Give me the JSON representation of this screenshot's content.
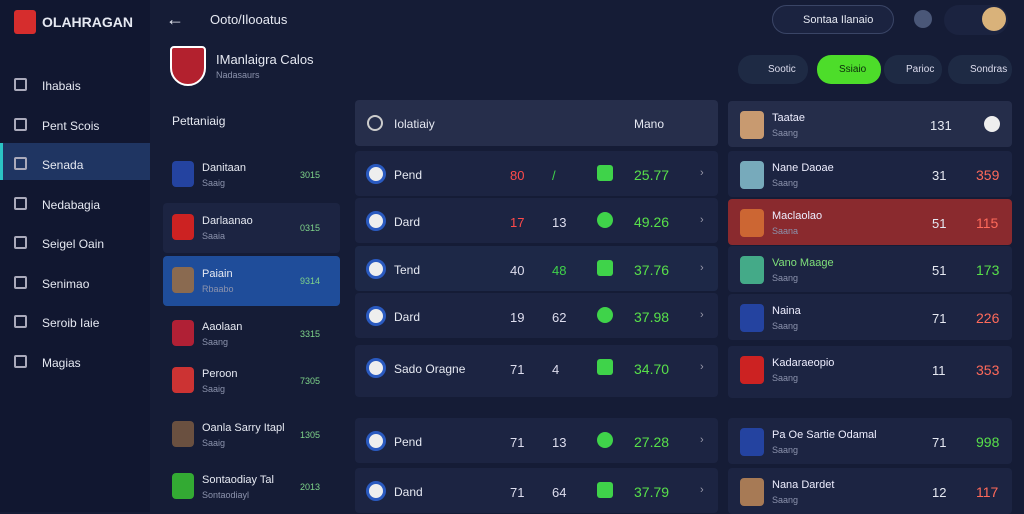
{
  "sidebar": {
    "brand": "OLAHRAGAN",
    "nav": [
      "Ihabais",
      "Pent Scois",
      "Senada",
      "Nedabagia",
      "Seigel Oain",
      "Senimao",
      "Seroib Iaie",
      "Magias"
    ]
  },
  "topbar": {
    "title": "Ooto/Ilooatus",
    "button": "Sontaa Ilanaio"
  },
  "team": {
    "name": "IManlaigra Calos",
    "subtitle": "Nadasaurs"
  },
  "tabs": [
    "Sootic",
    "Ssiaio",
    "Parioc",
    "Sondras"
  ],
  "players": {
    "title": "Pettaniaig",
    "rows": [
      {
        "name": "Danitaan",
        "sub": "Saaig",
        "value": "3015"
      },
      {
        "name": "Darlaanao",
        "sub": "Saaia",
        "value": "0315"
      },
      {
        "name": "Paiain",
        "sub": "Rbaabo",
        "value": "9314"
      },
      {
        "name": "Aaolaan",
        "sub": "Saang",
        "value": "3315"
      },
      {
        "name": "Peroon",
        "sub": "Saaig",
        "value": "7305"
      },
      {
        "name": "Oanla Sarry Itapl",
        "sub": "Saaig",
        "value": "1305"
      },
      {
        "name": "Sontaodiay Tal",
        "sub": "Sontaodiayl",
        "value": "2013"
      }
    ]
  },
  "matches": {
    "headers": [
      "Iolatiaiy",
      "Mano"
    ],
    "rows": [
      {
        "name": "Pend",
        "a": "80",
        "b": "/",
        "value": "25.77"
      },
      {
        "name": "Dard",
        "a": "17",
        "b": "13",
        "value": "49.26"
      },
      {
        "name": "Tend",
        "a": "40",
        "b": "48",
        "value": "37.76"
      },
      {
        "name": "Dard",
        "a": "19",
        "b": "62",
        "value": "37.98"
      },
      {
        "name": "Sado Oragne",
        "a": "71",
        "b": "4",
        "value": "34.70"
      },
      {
        "name": "Pend",
        "a": "71",
        "b": "13",
        "value": "27.28"
      },
      {
        "name": "Dand",
        "a": "71",
        "b": "64",
        "value": "37.79"
      }
    ]
  },
  "standings": {
    "rows": [
      {
        "name": "Taatae",
        "sub": "Saang",
        "rank": "131",
        "score": ""
      },
      {
        "name": "Nane Daoae",
        "sub": "Saang",
        "rank": "31",
        "score": "359"
      },
      {
        "name": "Maclaolao",
        "sub": "Saana",
        "rank": "51",
        "score": "115"
      },
      {
        "name": "Vano Maage",
        "sub": "Saang",
        "rank": "51",
        "score": "173"
      },
      {
        "name": "Naina",
        "sub": "Saang",
        "rank": "71",
        "score": "226"
      },
      {
        "name": "Kadaraeopio",
        "sub": "Saang",
        "rank": "11",
        "score": "353"
      },
      {
        "name": "Pa Oe Sartie Odamal",
        "sub": "Saang",
        "rank": "71",
        "score": "998"
      },
      {
        "name": "Nana Dardet",
        "sub": "Saang",
        "rank": "12",
        "score": "117"
      }
    ]
  }
}
